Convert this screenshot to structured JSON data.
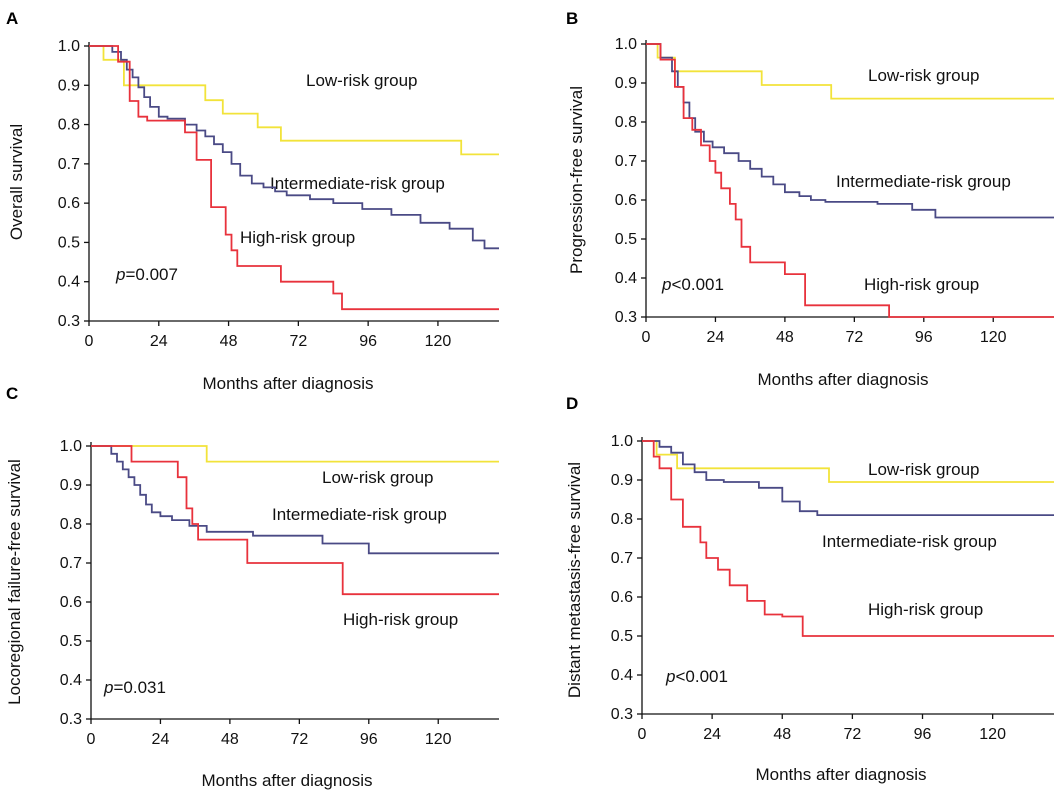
{
  "colors": {
    "low": "#f2e33a",
    "intermediate": "#4a4a85",
    "high": "#e8323c",
    "axis": "#111111"
  },
  "chart_data": [
    {
      "panel": "A",
      "type": "line",
      "step": true,
      "ylabel": "Overall survival",
      "xlabel": "Months after diagnosis",
      "xlim": [
        0,
        141
      ],
      "ylim": [
        0.3,
        1.0
      ],
      "xticks": [
        0,
        24,
        48,
        72,
        96,
        120
      ],
      "yticks": [
        0.3,
        0.4,
        0.5,
        0.6,
        0.7,
        0.8,
        0.9,
        1.0
      ],
      "pvalue": "=0.007",
      "series": [
        {
          "name": "Low-risk group",
          "key": "low",
          "label": "Low-risk group",
          "x": [
            0,
            5,
            12,
            40,
            46,
            58,
            66,
            85,
            128,
            141
          ],
          "y": [
            1.0,
            0.965,
            0.9,
            0.862,
            0.828,
            0.793,
            0.759,
            0.759,
            0.724,
            0.724
          ]
        },
        {
          "name": "Intermediate-risk group",
          "key": "intermediate",
          "label": "Intermediate-risk group",
          "x": [
            0,
            8,
            11,
            13,
            15,
            17,
            19,
            21,
            24,
            27,
            33,
            37,
            40,
            43,
            46,
            49,
            52,
            56,
            60,
            64,
            68,
            76,
            84,
            94,
            104,
            114,
            124,
            132,
            136,
            141
          ],
          "y": [
            1.0,
            0.985,
            0.965,
            0.94,
            0.92,
            0.895,
            0.87,
            0.845,
            0.82,
            0.815,
            0.8,
            0.785,
            0.77,
            0.75,
            0.73,
            0.7,
            0.67,
            0.65,
            0.64,
            0.63,
            0.62,
            0.61,
            0.6,
            0.585,
            0.57,
            0.55,
            0.535,
            0.505,
            0.485,
            0.485
          ]
        },
        {
          "name": "High-risk group",
          "key": "high",
          "label": "High-risk group",
          "x": [
            0,
            10,
            14,
            17,
            20,
            33,
            37,
            42,
            47,
            49,
            51,
            55,
            66,
            84,
            87,
            141
          ],
          "y": [
            1.0,
            0.96,
            0.86,
            0.82,
            0.81,
            0.78,
            0.71,
            0.59,
            0.52,
            0.48,
            0.44,
            0.44,
            0.4,
            0.37,
            0.33,
            0.33
          ]
        }
      ]
    },
    {
      "panel": "B",
      "type": "line",
      "step": true,
      "ylabel": "Progression-free survival",
      "xlabel": "Months after diagnosis",
      "xlim": [
        0,
        141
      ],
      "ylim": [
        0.3,
        1.0
      ],
      "xticks": [
        0,
        24,
        48,
        72,
        96,
        120
      ],
      "yticks": [
        0.3,
        0.4,
        0.5,
        0.6,
        0.7,
        0.8,
        0.9,
        1.0
      ],
      "pvalue": "<0.001",
      "series": [
        {
          "name": "Low-risk group",
          "key": "low",
          "label": "Low-risk group",
          "x": [
            0,
            4,
            10,
            40,
            64,
            141
          ],
          "y": [
            1.0,
            0.965,
            0.93,
            0.895,
            0.86,
            0.86
          ]
        },
        {
          "name": "Intermediate-risk group",
          "key": "intermediate",
          "label": "Intermediate-risk group",
          "x": [
            0,
            5,
            9,
            11,
            13,
            15,
            17,
            20,
            23,
            27,
            32,
            36,
            40,
            44,
            48,
            53,
            57,
            62,
            70,
            80,
            92,
            100,
            141
          ],
          "y": [
            1.0,
            0.965,
            0.93,
            0.89,
            0.85,
            0.81,
            0.775,
            0.75,
            0.735,
            0.72,
            0.7,
            0.68,
            0.66,
            0.64,
            0.62,
            0.61,
            0.6,
            0.595,
            0.595,
            0.59,
            0.575,
            0.555,
            0.555
          ]
        },
        {
          "name": "High-risk group",
          "key": "high",
          "label": "High-risk group",
          "x": [
            0,
            5,
            10,
            13,
            16,
            19,
            22,
            24,
            26,
            29,
            31,
            33,
            36,
            40,
            48,
            55,
            84,
            141
          ],
          "y": [
            1.0,
            0.96,
            0.89,
            0.81,
            0.78,
            0.74,
            0.7,
            0.67,
            0.63,
            0.59,
            0.55,
            0.48,
            0.44,
            0.44,
            0.41,
            0.33,
            0.3,
            0.3
          ]
        }
      ]
    },
    {
      "panel": "C",
      "type": "line",
      "step": true,
      "ylabel": "Locoregional failure-free survival",
      "xlabel": "Months after diagnosis",
      "xlim": [
        0,
        141
      ],
      "ylim": [
        0.3,
        1.0
      ],
      "xticks": [
        0,
        24,
        48,
        72,
        96,
        120
      ],
      "yticks": [
        0.3,
        0.4,
        0.5,
        0.6,
        0.7,
        0.8,
        0.9,
        1.0
      ],
      "pvalue": "=0.031",
      "series": [
        {
          "name": "Low-risk group",
          "key": "low",
          "label": "Low-risk group",
          "x": [
            0,
            40,
            141
          ],
          "y": [
            1.0,
            0.96,
            0.96
          ]
        },
        {
          "name": "Intermediate-risk group",
          "key": "intermediate",
          "label": "Intermediate-risk group",
          "x": [
            0,
            7,
            9,
            11,
            13,
            15,
            17,
            19,
            21,
            24,
            28,
            34,
            40,
            48,
            56,
            80,
            96,
            141
          ],
          "y": [
            1.0,
            0.98,
            0.96,
            0.94,
            0.92,
            0.9,
            0.875,
            0.85,
            0.83,
            0.82,
            0.81,
            0.795,
            0.78,
            0.78,
            0.77,
            0.75,
            0.725,
            0.725
          ]
        },
        {
          "name": "High-risk group",
          "key": "high",
          "label": "High-risk group",
          "x": [
            0,
            14,
            30,
            33,
            35,
            37,
            54,
            87,
            141
          ],
          "y": [
            1.0,
            0.96,
            0.92,
            0.84,
            0.8,
            0.76,
            0.7,
            0.62,
            0.62
          ]
        }
      ]
    },
    {
      "panel": "D",
      "type": "line",
      "step": true,
      "ylabel": "Distant metastasis-free survival",
      "xlabel": "Months after diagnosis",
      "xlim": [
        0,
        141
      ],
      "ylim": [
        0.3,
        1.0
      ],
      "xticks": [
        0,
        24,
        48,
        72,
        96,
        120
      ],
      "yticks": [
        0.3,
        0.4,
        0.5,
        0.6,
        0.7,
        0.8,
        0.9,
        1.0
      ],
      "pvalue": "<0.001",
      "series": [
        {
          "name": "Low-risk group",
          "key": "low",
          "label": "Low-risk group",
          "x": [
            0,
            5,
            12,
            64,
            141
          ],
          "y": [
            1.0,
            0.965,
            0.93,
            0.895,
            0.895
          ]
        },
        {
          "name": "Intermediate-risk group",
          "key": "intermediate",
          "label": "Intermediate-risk group",
          "x": [
            0,
            6,
            10,
            14,
            18,
            22,
            28,
            40,
            48,
            54,
            60,
            84,
            141
          ],
          "y": [
            1.0,
            0.985,
            0.97,
            0.94,
            0.92,
            0.9,
            0.895,
            0.88,
            0.845,
            0.82,
            0.81,
            0.81,
            0.81
          ]
        },
        {
          "name": "High-risk group",
          "key": "high",
          "label": "High-risk group",
          "x": [
            0,
            4,
            6,
            10,
            14,
            20,
            22,
            26,
            30,
            36,
            42,
            48,
            55,
            141
          ],
          "y": [
            1.0,
            0.96,
            0.93,
            0.85,
            0.78,
            0.74,
            0.7,
            0.67,
            0.63,
            0.59,
            0.555,
            0.55,
            0.5,
            0.5
          ]
        }
      ]
    }
  ]
}
